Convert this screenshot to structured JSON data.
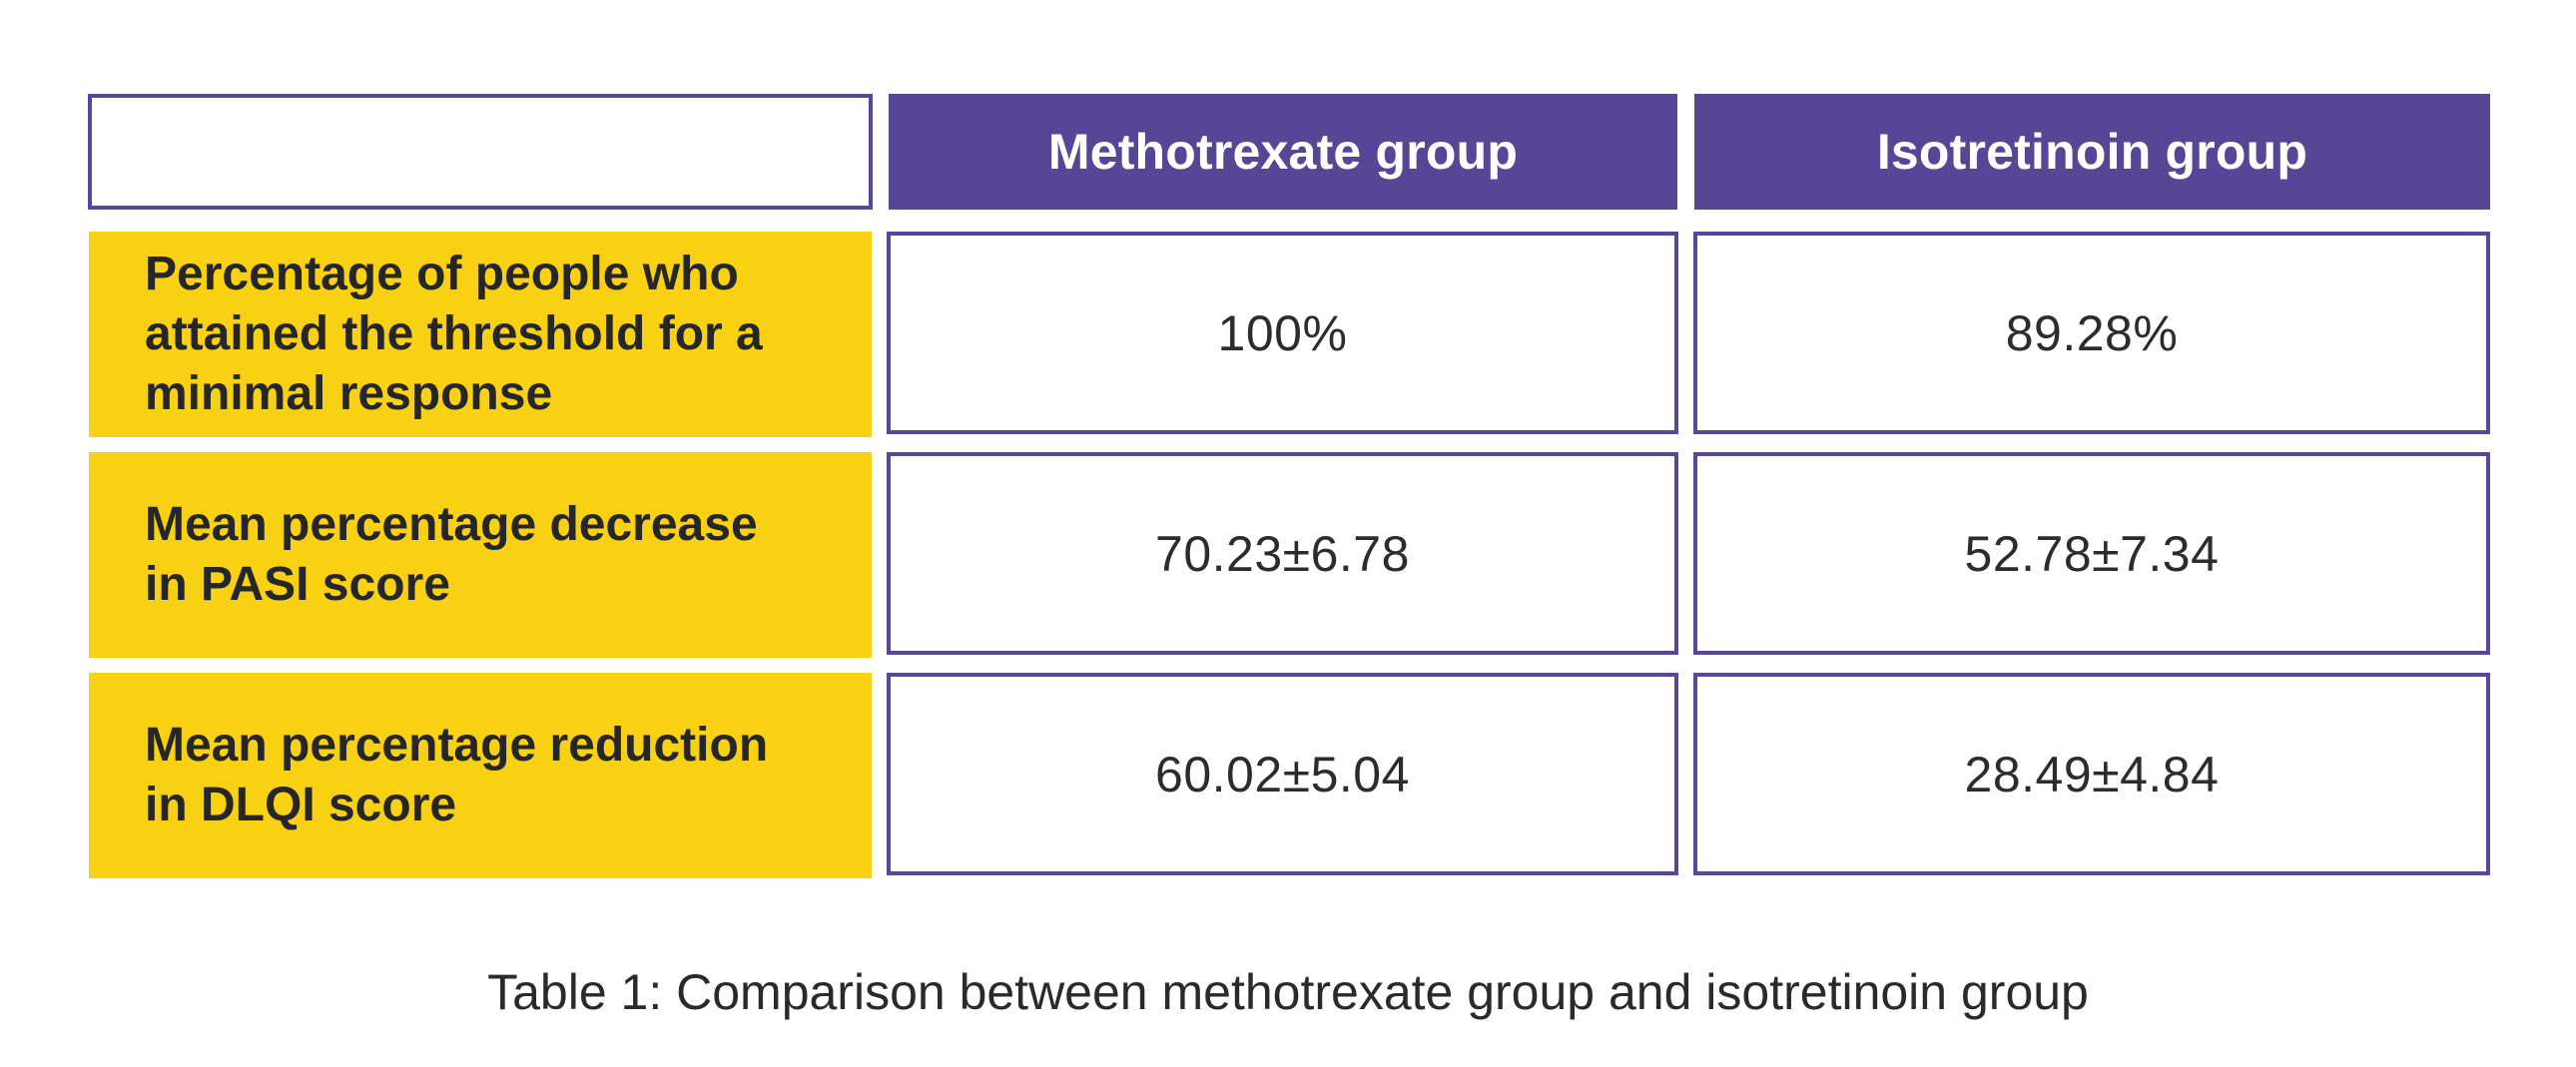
{
  "table": {
    "columns": [
      "Methotrexate group",
      "Isotretinoin group"
    ],
    "rows": [
      {
        "label": "Percentage of people who\nattained the threshold for a\n minimal response",
        "methotrexate": "100%",
        "isotretinoin": "89.28%"
      },
      {
        "label": "Mean percentage decrease\nin PASI score",
        "methotrexate": "70.23±6.78",
        "isotretinoin": "52.78±7.34"
      },
      {
        "label": "Mean percentage reduction\nin DLQI score",
        "methotrexate": "60.02±5.04",
        "isotretinoin": "28.49±4.84"
      }
    ]
  },
  "caption": "Table 1: Comparison between methotrexate group and isotretinoin group",
  "colors": {
    "header_bg": "#574695",
    "border": "#5a479a",
    "label_bg": "#f8d212"
  }
}
